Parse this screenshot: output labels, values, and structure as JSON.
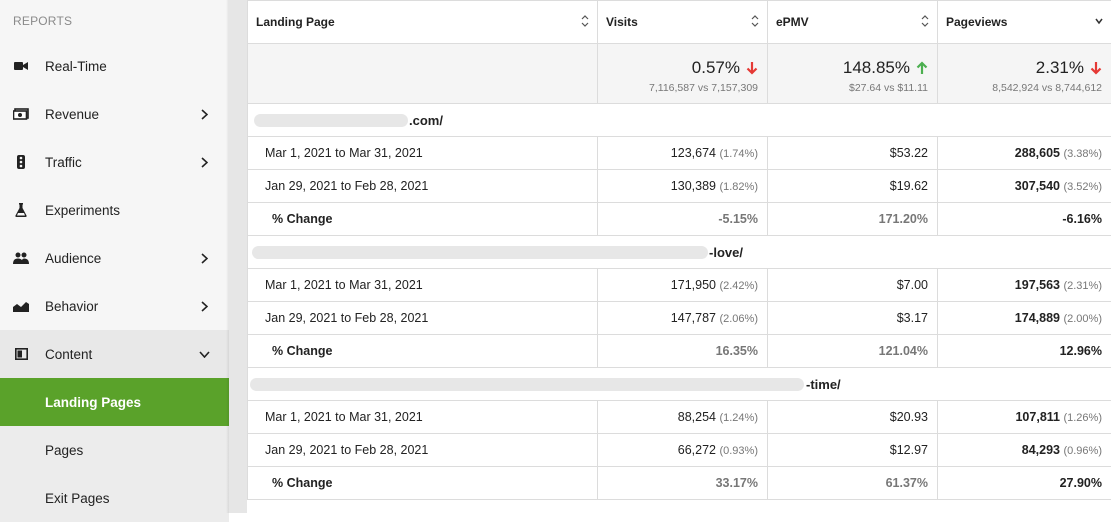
{
  "sidebar": {
    "section": "REPORTS",
    "items": [
      {
        "label": "Real-Time"
      },
      {
        "label": "Revenue"
      },
      {
        "label": "Traffic"
      },
      {
        "label": "Experiments"
      },
      {
        "label": "Audience"
      },
      {
        "label": "Behavior"
      },
      {
        "label": "Content"
      }
    ],
    "subitems": [
      {
        "label": "Landing Pages"
      },
      {
        "label": "Pages"
      },
      {
        "label": "Exit Pages"
      }
    ],
    "active_color": "#5aa22a"
  },
  "table": {
    "headers": {
      "landing": "Landing Page",
      "visits": "Visits",
      "epmv": "ePMV",
      "pageviews": "Pageviews"
    },
    "summary": {
      "visits": {
        "value": "0.57%",
        "trend": "down",
        "compare": "7,116,587 vs 7,157,309"
      },
      "epmv": {
        "value": "148.85%",
        "trend": "up",
        "compare": "$27.64 vs $11.11"
      },
      "pageviews": {
        "value": "2.31%",
        "trend": "down",
        "compare": "8,542,924 vs 8,744,612"
      }
    },
    "groups": [
      {
        "page": ".com/",
        "rows": [
          {
            "range": "Mar 1, 2021 to Mar 31, 2021",
            "visits": "123,674",
            "visits_pct": "(1.74%)",
            "epmv": "$53.22",
            "pageviews": "288,605",
            "pageviews_pct": "(3.38%)"
          },
          {
            "range": "Jan 29, 2021 to Feb 28, 2021",
            "visits": "130,389",
            "visits_pct": "(1.82%)",
            "epmv": "$19.62",
            "pageviews": "307,540",
            "pageviews_pct": "(3.52%)"
          }
        ],
        "change": {
          "label": "% Change",
          "visits": "-5.15%",
          "epmv": "171.20%",
          "pageviews": "-6.16%"
        }
      },
      {
        "page": "-love/",
        "rows": [
          {
            "range": "Mar 1, 2021 to Mar 31, 2021",
            "visits": "171,950",
            "visits_pct": "(2.42%)",
            "epmv": "$7.00",
            "pageviews": "197,563",
            "pageviews_pct": "(2.31%)"
          },
          {
            "range": "Jan 29, 2021 to Feb 28, 2021",
            "visits": "147,787",
            "visits_pct": "(2.06%)",
            "epmv": "$3.17",
            "pageviews": "174,889",
            "pageviews_pct": "(2.00%)"
          }
        ],
        "change": {
          "label": "% Change",
          "visits": "16.35%",
          "epmv": "121.04%",
          "pageviews": "12.96%"
        }
      },
      {
        "page": "-time/",
        "rows": [
          {
            "range": "Mar 1, 2021 to Mar 31, 2021",
            "visits": "88,254",
            "visits_pct": "(1.24%)",
            "epmv": "$20.93",
            "pageviews": "107,811",
            "pageviews_pct": "(1.26%)"
          },
          {
            "range": "Jan 29, 2021 to Feb 28, 2021",
            "visits": "66,272",
            "visits_pct": "(0.93%)",
            "epmv": "$12.97",
            "pageviews": "84,293",
            "pageviews_pct": "(0.96%)"
          }
        ],
        "change": {
          "label": "% Change",
          "visits": "33.17%",
          "epmv": "61.37%",
          "pageviews": "27.90%"
        }
      }
    ],
    "colors": {
      "up": "#4caf50",
      "down": "#e53935"
    }
  }
}
